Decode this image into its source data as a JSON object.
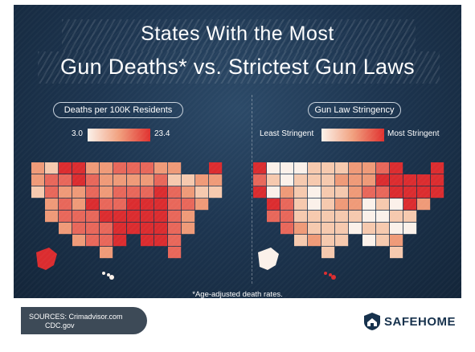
{
  "header": {
    "title_line1": "States With the Most",
    "title_line2": "Gun Deaths* vs. Strictest Gun Laws"
  },
  "left_panel": {
    "label": "Deaths per 100K Residents",
    "scale_min": "3.0",
    "scale_max": "23.4",
    "scale_colors": [
      "#fbf1ea",
      "#f1a07e",
      "#e0312f"
    ]
  },
  "right_panel": {
    "label": "Gun Law Stringency",
    "scale_min": "Least Stringent",
    "scale_max": "Most Stringent",
    "scale_colors": [
      "#fbf1ea",
      "#f1a07e",
      "#e0312f"
    ]
  },
  "footnote": "*Age-adjusted death rates.",
  "sources": {
    "line1": "SOURCES: Crimadvisor.com",
    "line2": "CDC.gov"
  },
  "brand": {
    "name": "SAFEHOME",
    "color": "#17324d"
  },
  "colors": {
    "background": "#1d3550",
    "light": "#fbf1ea",
    "light_mid": "#f6c9ae",
    "mid": "#ef9a78",
    "mid_dark": "#e8675a",
    "dark": "#db2c2f"
  }
}
